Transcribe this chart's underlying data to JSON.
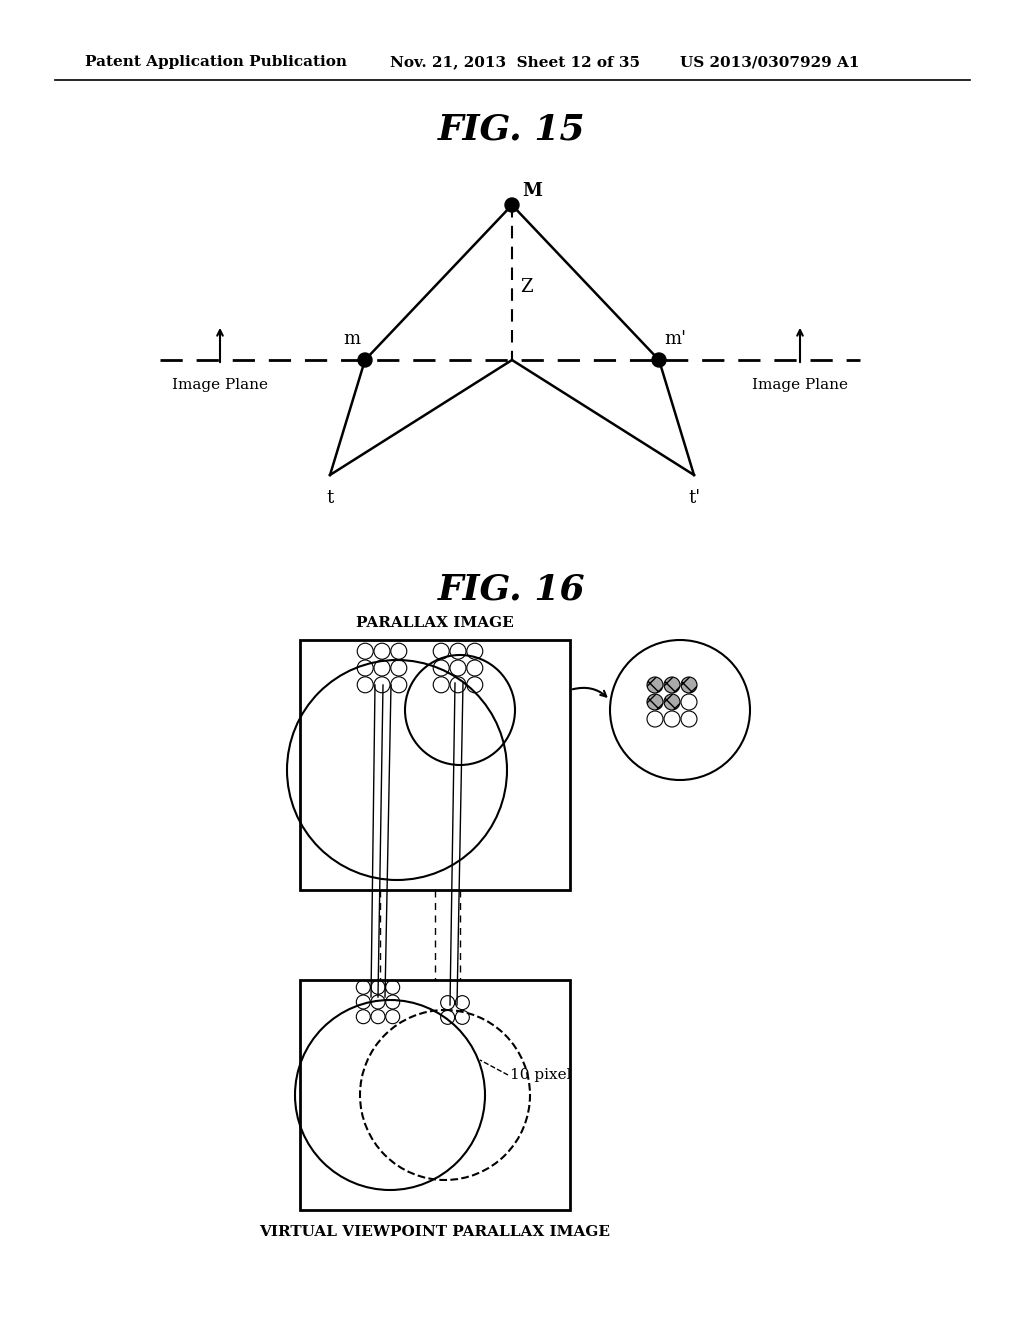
{
  "bg_color": "#ffffff",
  "header_text": "Patent Application Publication",
  "header_date": "Nov. 21, 2013  Sheet 12 of 35",
  "header_patent": "US 2013/0307929 A1",
  "fig15_title": "FIG. 15",
  "fig16_title": "FIG. 16",
  "parallax_label": "PARALLAX IMAGE",
  "virtual_label": "VIRTUAL VIEWPOINT PARALLAX IMAGE",
  "pixel_label": "10 pixel",
  "z_label": "Z",
  "m_label": "m",
  "mprime_label": "m'",
  "M_label": "M",
  "t_label": "t",
  "tprime_label": "t'",
  "imageplane_label": "Image Plane"
}
